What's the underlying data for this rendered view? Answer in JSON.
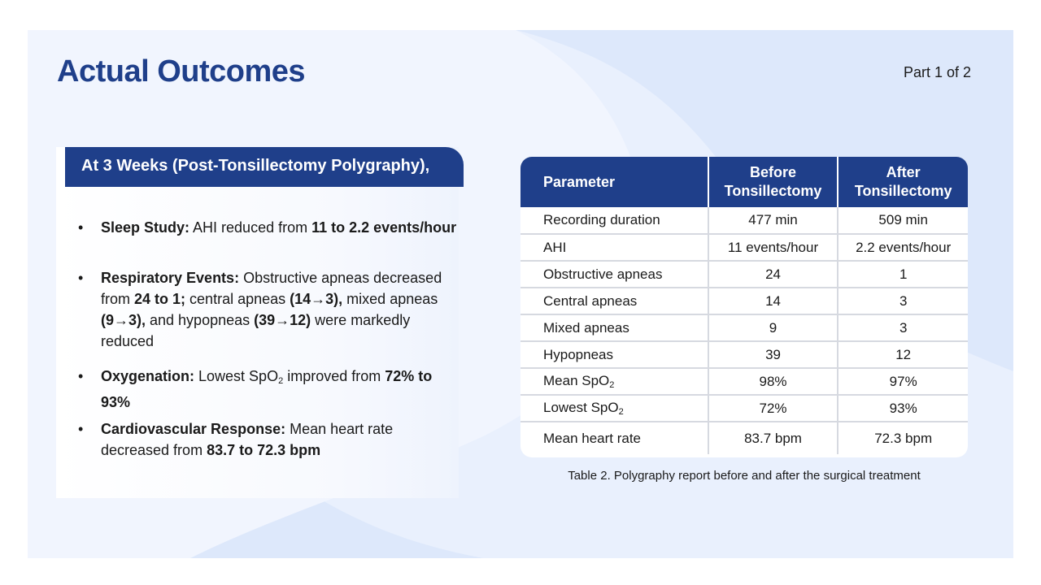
{
  "title": "Actual Outcomes",
  "part_label": "Part 1 of 2",
  "section_header": "At 3 Weeks (Post-Tonsillectomy Polygraphy),",
  "bullets": {
    "sleep": {
      "label": "Sleep Study:",
      "text1": " AHI reduced from ",
      "bold1": "11 to 2.2 events/hour"
    },
    "resp": {
      "label": "Respiratory Events:",
      "text1": " Obstructive apneas decreased from ",
      "bold1": "24 to 1;",
      "text2": " central apneas ",
      "bold2": "(14→3),",
      "text3": " mixed apneas ",
      "bold3": "(9→3),",
      "text4": " and hypopneas ",
      "bold4": "(39→12)",
      "text5": " were markedly reduced"
    },
    "oxy": {
      "label": "Oxygenation:",
      "text1": " Lowest SpO",
      "sub1": "2",
      "text2": " improved from ",
      "bold1": "72% to 93%"
    },
    "cardio": {
      "label": "Cardiovascular Response:",
      "text1": " Mean heart rate decreased from ",
      "bold1": "83.7 to 72.3 bpm"
    }
  },
  "table": {
    "headers": {
      "param": "Parameter",
      "before_line1": "Before",
      "before_line2": "Tonsillectomy",
      "after_line1": "After",
      "after_line2": "Tonsillectomy"
    },
    "rows": [
      {
        "p": "Recording duration",
        "sub": "",
        "before": "477 min",
        "after": "509 min"
      },
      {
        "p": "AHI",
        "sub": "",
        "before": "11 events/hour",
        "after": "2.2 events/hour"
      },
      {
        "p": "Obstructive apneas",
        "sub": "",
        "before": "24",
        "after": "1"
      },
      {
        "p": "Central apneas",
        "sub": "",
        "before": "14",
        "after": "3"
      },
      {
        "p": "Mixed apneas",
        "sub": "",
        "before": "9",
        "after": "3"
      },
      {
        "p": "Hypopneas",
        "sub": "",
        "before": "39",
        "after": "12"
      },
      {
        "p": "Mean SpO",
        "sub": "2",
        "before": "98%",
        "after": "97%"
      },
      {
        "p": "Lowest SpO",
        "sub": "2",
        "before": "72%",
        "after": "93%"
      },
      {
        "p": "Mean heart rate",
        "sub": "",
        "before": "83.7 bpm",
        "after": "72.3 bpm"
      }
    ]
  },
  "caption": "Table 2. Polygraphy report before and after the surgical treatment",
  "colors": {
    "accent": "#1f3f8a",
    "background": "#dde8fb"
  }
}
